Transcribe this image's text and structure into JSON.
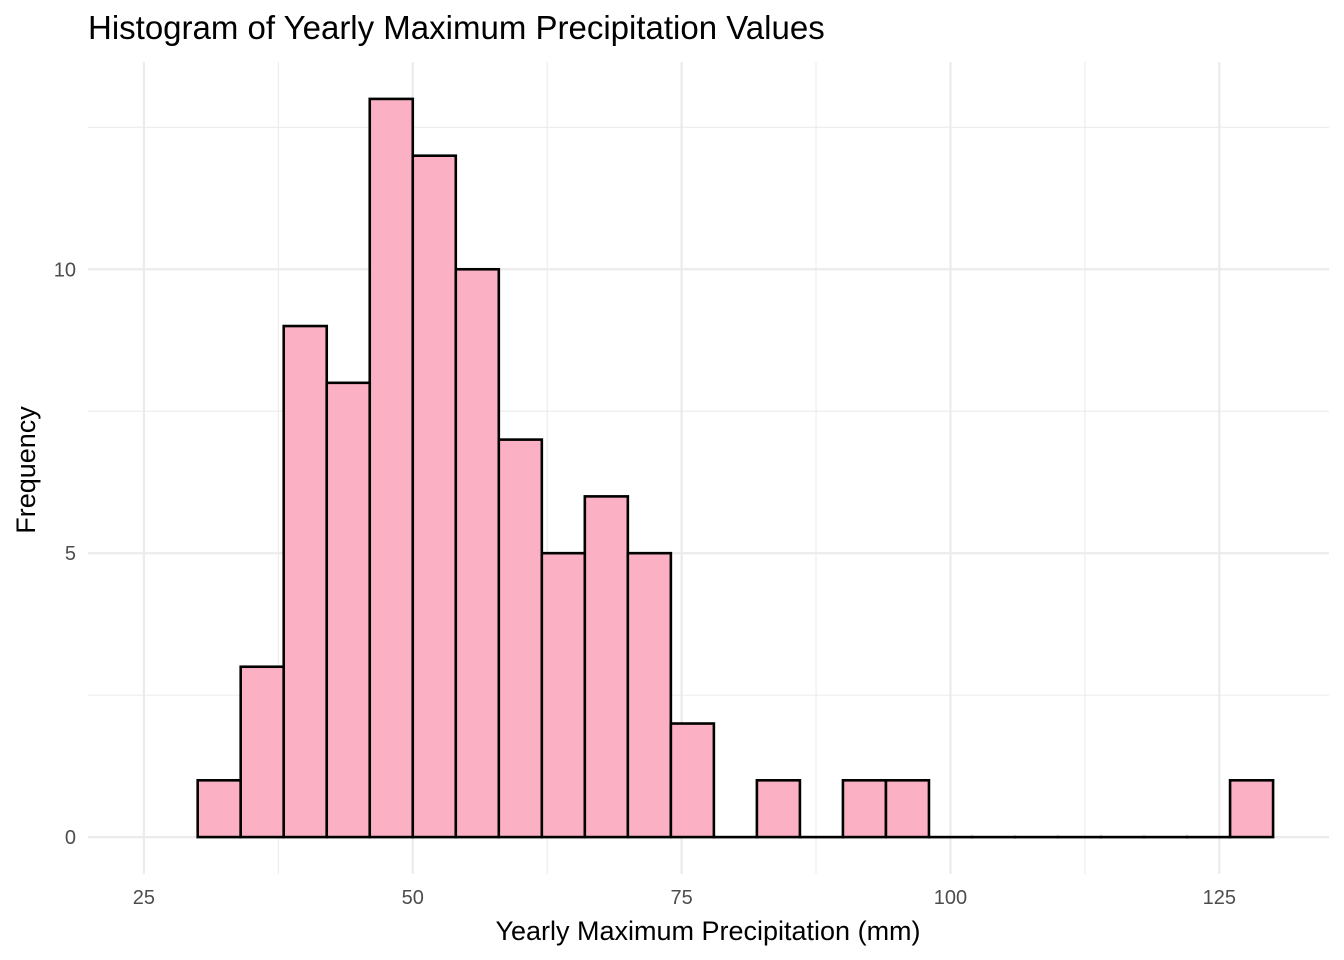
{
  "chart_data": {
    "type": "bar",
    "title": "Histogram of Yearly Maximum Precipitation Values",
    "xlabel": "Yearly Maximum Precipitation (mm)",
    "ylabel": "Frequency",
    "xlim": [
      19.8,
      135.2
    ],
    "ylim": [
      -0.65,
      13.65
    ],
    "x_ticks": [
      {
        "value": 25,
        "label": "25"
      },
      {
        "value": 50,
        "label": "50"
      },
      {
        "value": 75,
        "label": "75"
      },
      {
        "value": 100,
        "label": "100"
      },
      {
        "value": 125,
        "label": "125"
      }
    ],
    "y_ticks": [
      {
        "value": 0,
        "label": "0"
      },
      {
        "value": 5,
        "label": "5"
      },
      {
        "value": 10,
        "label": "10"
      }
    ],
    "x_minor_breaks": [
      37.5,
      62.5,
      87.5,
      112.5
    ],
    "y_minor_breaks": [
      2.5,
      7.5,
      12.5
    ],
    "grid": true,
    "fill_color": "#FBB1C3",
    "edge_color": "#000000",
    "bins": [
      {
        "x0": 30,
        "x1": 34,
        "count": 1
      },
      {
        "x0": 34,
        "x1": 38,
        "count": 3
      },
      {
        "x0": 38,
        "x1": 42,
        "count": 9
      },
      {
        "x0": 42,
        "x1": 46,
        "count": 8
      },
      {
        "x0": 46,
        "x1": 50,
        "count": 13
      },
      {
        "x0": 50,
        "x1": 54,
        "count": 12
      },
      {
        "x0": 54,
        "x1": 58,
        "count": 10
      },
      {
        "x0": 58,
        "x1": 62,
        "count": 7
      },
      {
        "x0": 62,
        "x1": 66,
        "count": 5
      },
      {
        "x0": 66,
        "x1": 70,
        "count": 6
      },
      {
        "x0": 70,
        "x1": 74,
        "count": 5
      },
      {
        "x0": 74,
        "x1": 78,
        "count": 2
      },
      {
        "x0": 78,
        "x1": 82,
        "count": 0
      },
      {
        "x0": 82,
        "x1": 86,
        "count": 1
      },
      {
        "x0": 86,
        "x1": 90,
        "count": 0
      },
      {
        "x0": 90,
        "x1": 94,
        "count": 1
      },
      {
        "x0": 94,
        "x1": 98,
        "count": 1
      },
      {
        "x0": 98,
        "x1": 102,
        "count": 0
      },
      {
        "x0": 102,
        "x1": 106,
        "count": 0
      },
      {
        "x0": 106,
        "x1": 110,
        "count": 0
      },
      {
        "x0": 110,
        "x1": 114,
        "count": 0
      },
      {
        "x0": 114,
        "x1": 118,
        "count": 0
      },
      {
        "x0": 118,
        "x1": 122,
        "count": 0
      },
      {
        "x0": 122,
        "x1": 126,
        "count": 0
      },
      {
        "x0": 126,
        "x1": 130,
        "count": 1
      }
    ]
  }
}
